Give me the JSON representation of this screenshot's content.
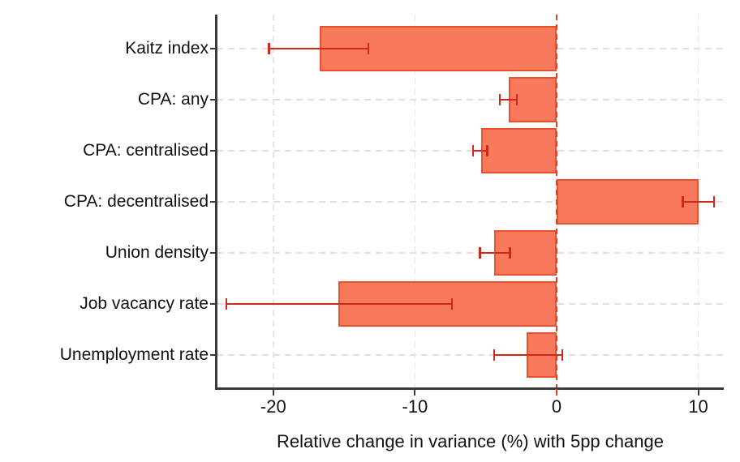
{
  "chart_data": {
    "type": "bar",
    "orientation": "horizontal",
    "title": "",
    "xlabel": "Relative change in variance (%) with 5pp change",
    "ylabel": "",
    "categories": [
      "Kaitz index",
      "CPA: any",
      "CPA: centralised",
      "CPA: decentralised",
      "Union density",
      "Job vacancy rate",
      "Unemployment rate"
    ],
    "series": [
      {
        "name": "Relative change in variance (%)",
        "values": [
          -16.7,
          -3.4,
          -5.3,
          10.0,
          -4.4,
          -15.4,
          -2.1
        ],
        "ci_low": [
          -20.3,
          -4.0,
          -5.9,
          8.9,
          -5.4,
          -23.3,
          -4.4
        ],
        "ci_high": [
          -13.3,
          -2.8,
          -4.9,
          11.1,
          -3.3,
          -7.4,
          0.4
        ]
      }
    ],
    "xticks": [
      -20,
      -10,
      0,
      10
    ],
    "xtick_labels": [
      "-20",
      "-10",
      "0",
      "10"
    ],
    "xlim": [
      -24.0,
      11.8
    ],
    "grid": true,
    "legend": "none",
    "reference_line_x": 0,
    "colors": {
      "bar_fill": "#F8795B",
      "bar_border": "#E8512B",
      "error_bar": "#D4271B",
      "zero_line": "#E6402A",
      "grid_vertical": "#E7E7E7",
      "grid_horizontal": "#EFD9D3",
      "axis": "#3A3A3A",
      "text": "#111111"
    }
  }
}
